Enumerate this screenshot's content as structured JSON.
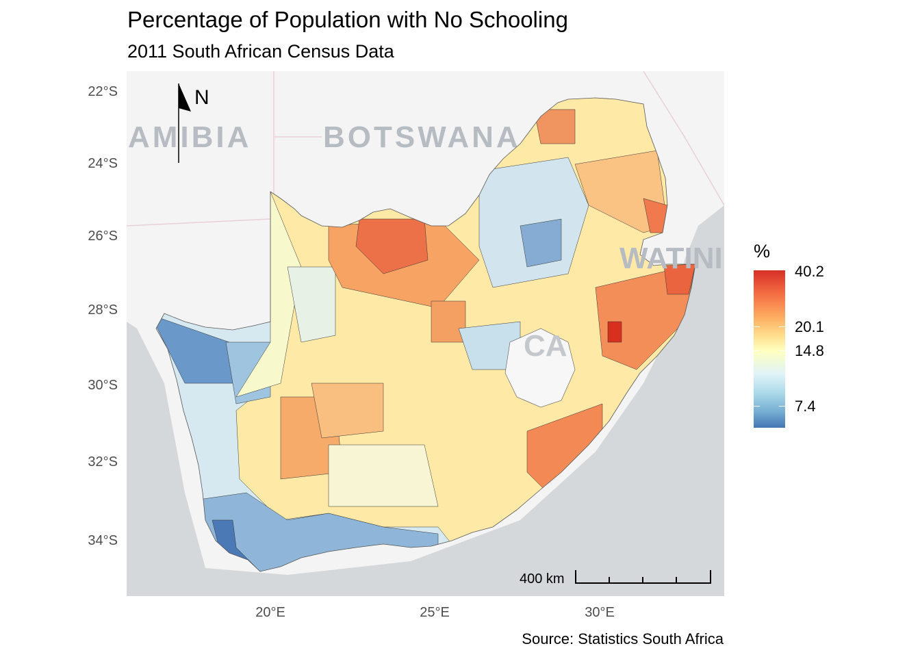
{
  "title": "Percentage of Population with No Schooling",
  "subtitle": "2011 South African Census Data",
  "caption": "Source: Statistics South Africa",
  "axes": {
    "y_ticks": [
      "22°S",
      "24°S",
      "26°S",
      "28°S",
      "30°S",
      "32°S",
      "34°S"
    ],
    "x_ticks": [
      "20°E",
      "25°E",
      "30°E"
    ]
  },
  "legend": {
    "title": "%",
    "max": "40.2",
    "breaks": [
      "40.2",
      "20.1",
      "14.8",
      "7.4"
    ],
    "colors": {
      "high": "#d73027",
      "mid": "#ffffbf",
      "low": "#4575b4"
    }
  },
  "basemap_labels": {
    "namibia": "AMIBIA",
    "botswana": "BOTSWANA",
    "eswatini": "WATINI",
    "south_africa_partial": "CA"
  },
  "north_arrow": {
    "label": "N"
  },
  "scale_bar": {
    "label": "400 km"
  },
  "colors": {
    "ocean": "#d4d8db",
    "land": "#f4f4f4",
    "border": "#333333"
  }
}
